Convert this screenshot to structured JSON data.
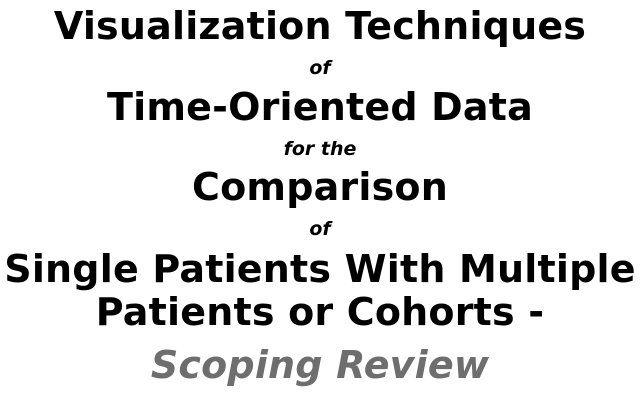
{
  "title": {
    "line1": "Visualization Techniques",
    "connector1": "of",
    "line2": "Time-Oriented Data",
    "connector2": "for the",
    "line3": "Comparison",
    "connector3": "of",
    "line4": "Single Patients With Multiple",
    "line5": "Patients or Cohorts -",
    "subtitle": "Scoping Review"
  },
  "colors": {
    "text": "#000000",
    "subtitle": "#6e6e6e",
    "background": "#ffffff"
  }
}
